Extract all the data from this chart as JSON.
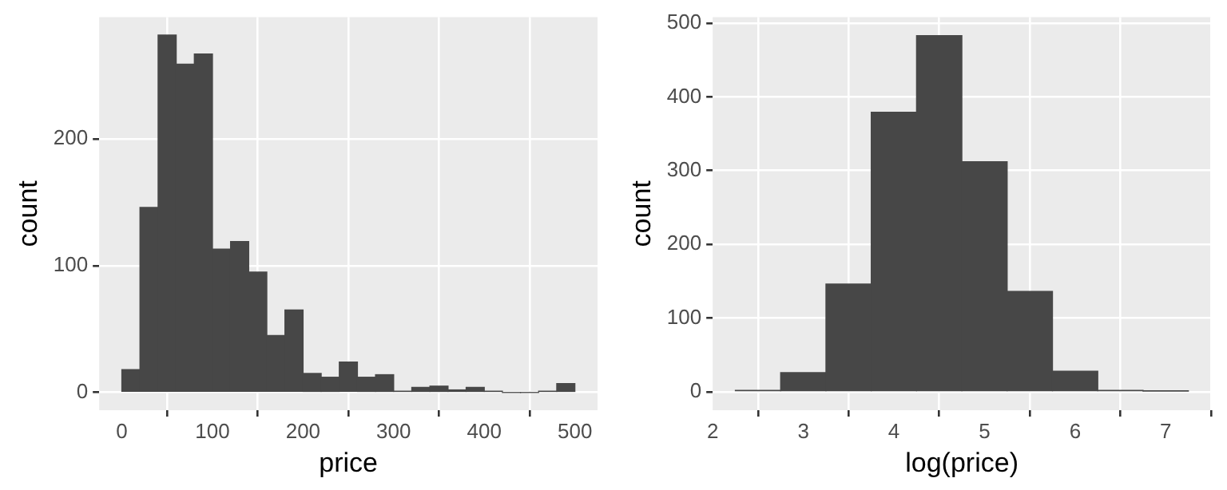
{
  "chart_data": [
    {
      "type": "histogram",
      "xlabel": "price",
      "ylabel": "count",
      "bins": [
        0,
        20,
        40,
        60,
        80,
        100,
        120,
        140,
        160,
        180,
        200,
        220,
        240,
        260,
        280,
        300,
        320,
        340,
        360,
        380,
        400,
        420,
        440,
        460,
        480,
        500
      ],
      "values": [
        18,
        146,
        282,
        259,
        267,
        113,
        119,
        95,
        45,
        65,
        15,
        12,
        24,
        12,
        14,
        1,
        4,
        5,
        2,
        4,
        1,
        0,
        0,
        1,
        7
      ],
      "color": "#474747",
      "xlim": [
        -25,
        525
      ],
      "xticks": [
        0,
        100,
        200,
        300,
        400,
        500
      ],
      "ylim": [
        -14,
        296
      ],
      "yticks": [
        0,
        100,
        200
      ],
      "grid": true,
      "legend": false
    },
    {
      "type": "histogram",
      "xlabel": "log(price)",
      "ylabel": "count",
      "bins": [
        2.25,
        2.75,
        3.25,
        3.75,
        4.25,
        4.75,
        5.25,
        5.75,
        6.25,
        6.75,
        7.25
      ],
      "values": [
        2,
        26,
        146,
        379,
        483,
        312,
        136,
        28,
        2,
        1
      ],
      "color": "#474747",
      "xlim": [
        2,
        7.5
      ],
      "xticks": [
        2,
        3,
        4,
        5,
        6,
        7
      ],
      "ylim": [
        -25,
        508
      ],
      "yticks": [
        0,
        100,
        200,
        300,
        400,
        500
      ],
      "grid": true,
      "legend": false
    }
  ]
}
